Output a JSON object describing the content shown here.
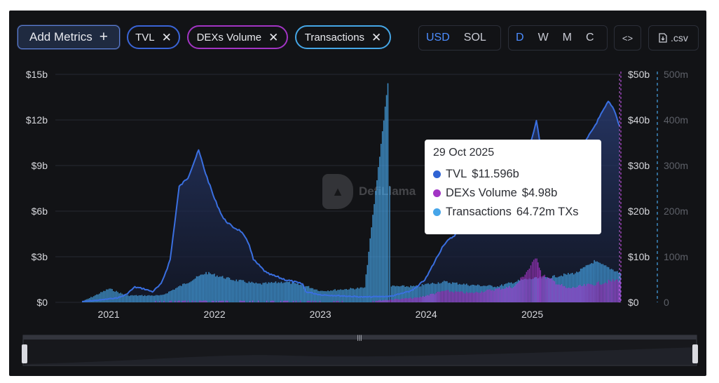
{
  "toolbar": {
    "add_metrics_label": "Add Metrics",
    "add_icon": "plus-icon",
    "metrics": [
      {
        "label": "TVL",
        "color": "#3a64d6"
      },
      {
        "label": "DEXs Volume",
        "color": "#a234c4"
      },
      {
        "label": "Transactions",
        "color": "#45a6e6"
      }
    ],
    "remove_icon": "close-icon",
    "currencies": [
      "USD",
      "SOL"
    ],
    "active_currency": "USD",
    "intervals": [
      "D",
      "W",
      "M",
      "C"
    ],
    "active_interval": "D",
    "embed_icon": "code-icon",
    "csv_label": ".csv",
    "csv_icon": "file-download-icon"
  },
  "watermark": "DefiLlama",
  "tooltip": {
    "date": "29 Oct 2025",
    "rows": [
      {
        "name": "TVL",
        "value": "$11.596b",
        "color": "#2f63d3"
      },
      {
        "name": "DEXs Volume",
        "value": "$4.98b",
        "color": "#a234c4"
      },
      {
        "name": "Transactions",
        "value": "64.72m TXs",
        "color": "#46a5e9"
      }
    ]
  },
  "chart_data": {
    "type": "line",
    "x_ticks": [
      "2021",
      "2022",
      "2023",
      "2024",
      "2025"
    ],
    "x_range": [
      "2020-07-01",
      "2025-11-05"
    ],
    "axes": {
      "left": {
        "ticks": [
          "$0",
          "$3b",
          "$6b",
          "$9b",
          "$12b",
          "$15b"
        ],
        "range": [
          0,
          15
        ],
        "unit": "billion USD"
      },
      "right1": {
        "ticks": [
          "$0",
          "$10b",
          "$20b",
          "$30b",
          "$40b",
          "$50b"
        ],
        "range": [
          0,
          50
        ],
        "unit": "billion USD"
      },
      "right2": {
        "ticks": [
          "0",
          "100m",
          "200m",
          "300m",
          "400m",
          "500m"
        ],
        "range": [
          0,
          500
        ],
        "unit": "million TXs"
      }
    },
    "grid": true,
    "series": [
      {
        "name": "TVL",
        "axis": "left",
        "color": "#3a6fe0",
        "points": [
          [
            "2020-10-01",
            0.05
          ],
          [
            "2020-12-01",
            0.15
          ],
          [
            "2021-02-01",
            0.3
          ],
          [
            "2021-03-01",
            0.5
          ],
          [
            "2021-04-01",
            1.0
          ],
          [
            "2021-05-01",
            0.9
          ],
          [
            "2021-06-01",
            0.7
          ],
          [
            "2021-07-01",
            1.2
          ],
          [
            "2021-08-01",
            2.8
          ],
          [
            "2021-09-01",
            7.6
          ],
          [
            "2021-10-01",
            8.2
          ],
          [
            "2021-11-07",
            10.0
          ],
          [
            "2021-12-01",
            8.5
          ],
          [
            "2022-01-01",
            6.8
          ],
          [
            "2022-02-01",
            5.5
          ],
          [
            "2022-03-01",
            5.0
          ],
          [
            "2022-04-01",
            4.7
          ],
          [
            "2022-05-01",
            3.8
          ],
          [
            "2022-05-15",
            2.8
          ],
          [
            "2022-07-01",
            1.9
          ],
          [
            "2022-09-01",
            1.5
          ],
          [
            "2022-11-01",
            1.2
          ],
          [
            "2022-11-12",
            0.7
          ],
          [
            "2023-01-01",
            0.5
          ],
          [
            "2023-06-01",
            0.35
          ],
          [
            "2023-09-01",
            0.4
          ],
          [
            "2023-11-01",
            0.7
          ],
          [
            "2023-12-01",
            1.0
          ],
          [
            "2024-01-01",
            1.6
          ],
          [
            "2024-03-01",
            3.8
          ],
          [
            "2024-05-01",
            4.8
          ],
          [
            "2024-07-01",
            4.9
          ],
          [
            "2024-09-01",
            5.0
          ],
          [
            "2024-11-01",
            6.5
          ],
          [
            "2025-01-15",
            11.9
          ],
          [
            "2025-02-15",
            8.5
          ],
          [
            "2025-04-01",
            6.0
          ],
          [
            "2025-06-01",
            8.0
          ],
          [
            "2025-07-01",
            10.5
          ],
          [
            "2025-08-01",
            11.5
          ],
          [
            "2025-09-20",
            13.2
          ],
          [
            "2025-10-10",
            12.7
          ],
          [
            "2025-10-29",
            11.596
          ]
        ]
      },
      {
        "name": "DEXs Volume",
        "axis": "right1",
        "color": "#a234c4",
        "points": [
          [
            "2021-03-01",
            0.1
          ],
          [
            "2021-06-01",
            0.2
          ],
          [
            "2021-09-01",
            0.3
          ],
          [
            "2022-01-01",
            0.3
          ],
          [
            "2023-06-01",
            0.2
          ],
          [
            "2023-12-01",
            1.0
          ],
          [
            "2024-03-01",
            2.5
          ],
          [
            "2024-06-01",
            2.0
          ],
          [
            "2024-11-01",
            3.5
          ],
          [
            "2024-12-20",
            7.5
          ],
          [
            "2025-01-15",
            10.0
          ],
          [
            "2025-02-01",
            6.0
          ],
          [
            "2025-05-01",
            3.0
          ],
          [
            "2025-08-01",
            4.0
          ],
          [
            "2025-10-29",
            4.98
          ]
        ]
      },
      {
        "name": "Transactions",
        "axis": "right2",
        "color": "#46a5e9",
        "points": [
          [
            "2020-10-01",
            2
          ],
          [
            "2021-01-01",
            30
          ],
          [
            "2021-03-01",
            15
          ],
          [
            "2021-07-01",
            15
          ],
          [
            "2021-10-01",
            45
          ],
          [
            "2021-12-01",
            65
          ],
          [
            "2022-03-01",
            50
          ],
          [
            "2022-06-01",
            40
          ],
          [
            "2022-09-01",
            45
          ],
          [
            "2022-11-15",
            35
          ],
          [
            "2023-01-01",
            25
          ],
          [
            "2023-06-01",
            32
          ],
          [
            "2023-08-20",
            480
          ],
          [
            "2023-09-01",
            35
          ],
          [
            "2023-12-01",
            35
          ],
          [
            "2024-01-01",
            40
          ],
          [
            "2024-03-01",
            45
          ],
          [
            "2024-06-01",
            38
          ],
          [
            "2024-09-01",
            35
          ],
          [
            "2024-12-01",
            50
          ],
          [
            "2025-03-01",
            55
          ],
          [
            "2025-06-01",
            65
          ],
          [
            "2025-08-01",
            90
          ],
          [
            "2025-10-29",
            64.72
          ]
        ]
      }
    ],
    "highlight_date": "2025-10-29"
  },
  "colors": {
    "panel_bg": "#121316",
    "accent": "#4c8dff",
    "tvl_fill": "#1e2a55"
  }
}
